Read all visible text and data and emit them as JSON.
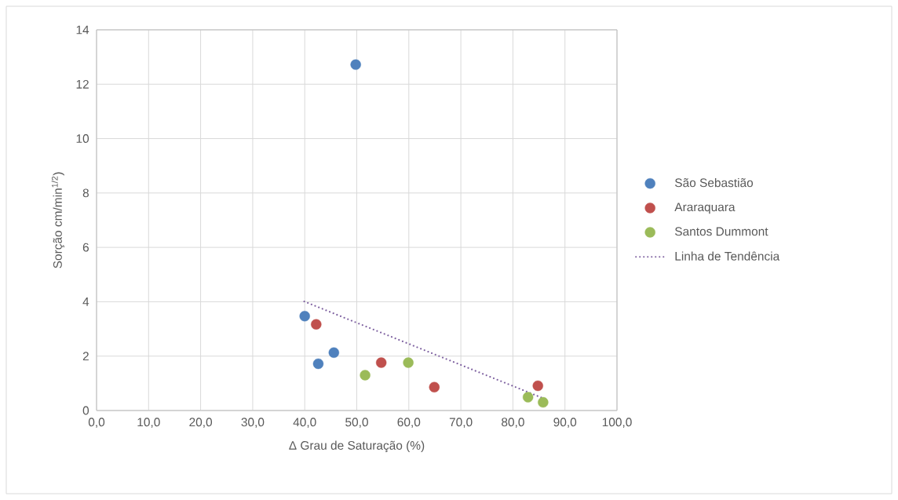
{
  "chart_data": {
    "type": "scatter",
    "xlabel": "Δ Grau de Saturação (%)",
    "ylabel": "Sorção cm/min$^{1/2}$)",
    "xlim": [
      0,
      100
    ],
    "ylim": [
      0,
      14
    ],
    "xticks": [
      {
        "value": 0,
        "label": "0,0"
      },
      {
        "value": 10,
        "label": "10,0"
      },
      {
        "value": 20,
        "label": "20,0"
      },
      {
        "value": 30,
        "label": "30,0"
      },
      {
        "value": 40,
        "label": "40,0"
      },
      {
        "value": 50,
        "label": "50,0"
      },
      {
        "value": 60,
        "label": "60,0"
      },
      {
        "value": 70,
        "label": "70,0"
      },
      {
        "value": 80,
        "label": "80,0"
      },
      {
        "value": 90,
        "label": "90,0"
      },
      {
        "value": 100,
        "label": "100,0"
      }
    ],
    "yticks": [
      0,
      2,
      4,
      6,
      8,
      10,
      12,
      14
    ],
    "grid": true,
    "legend": "right",
    "marker": "circle",
    "series": [
      {
        "name": "São Sebastião",
        "color": "#4f81bd",
        "x": [
          40.0,
          42.6,
          45.6,
          49.8
        ],
        "values": [
          3.47,
          1.72,
          2.13,
          12.72
        ]
      },
      {
        "name": "Araraquara",
        "color": "#c0504d",
        "x": [
          42.2,
          54.7,
          64.9,
          84.8
        ],
        "values": [
          3.17,
          1.76,
          0.86,
          0.91
        ]
      },
      {
        "name": "Santos Dummont",
        "color": "#9bbb59",
        "x": [
          51.6,
          59.9,
          82.9,
          85.8
        ],
        "values": [
          1.3,
          1.76,
          0.49,
          0.3
        ]
      },
      {
        "name": "Linha de Tendência",
        "type": "line",
        "color": "#8064a2",
        "line_style": "dotted",
        "marker": "none",
        "x": [
          39.9,
          85.8
        ],
        "values": [
          4.01,
          0.45
        ]
      }
    ]
  }
}
